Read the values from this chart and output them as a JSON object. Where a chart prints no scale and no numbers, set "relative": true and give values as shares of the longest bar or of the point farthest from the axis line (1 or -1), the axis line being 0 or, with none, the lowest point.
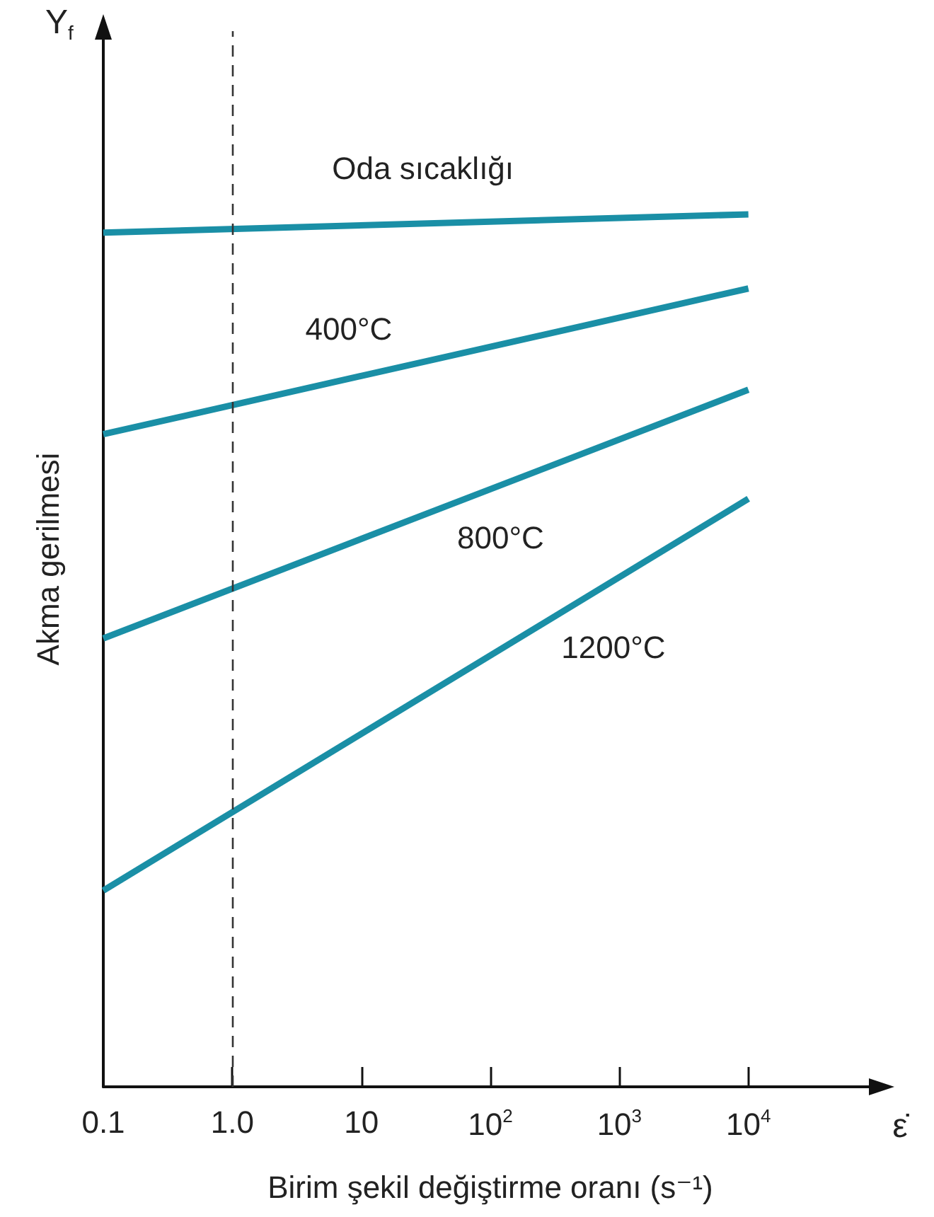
{
  "chart_data": {
    "type": "line",
    "relative": true,
    "xlabel": "Birim şekil değiştirme oranı (s⁻¹)",
    "ylabel": "Akma gerilmesi",
    "annotations": [
      "Y$_{f}$",
      "ε̇"
    ],
    "log": "x",
    "xlim": [
      0.1,
      100000
    ],
    "xticks": [
      {
        "value": 0.1,
        "label": "0.1"
      },
      {
        "value": 1,
        "label": "1.0"
      },
      {
        "value": 10,
        "label": "10"
      },
      {
        "value": 100,
        "label": "10$^{2}$"
      },
      {
        "value": 1000,
        "label": "10$^{3}$"
      },
      {
        "value": 10000,
        "label": "10$^{4}$"
      }
    ],
    "x": [
      0.1,
      10000
    ],
    "series": [
      {
        "name": "Oda sıcaklığı",
        "color": "#1a8fa6",
        "values": [
          0.979,
          1.0
        ]
      },
      {
        "name": "400°C",
        "color": "#1a8fa6",
        "values": [
          0.748,
          0.915
        ]
      },
      {
        "name": "800°C",
        "color": "#1a8fa6",
        "values": [
          0.514,
          0.799
        ]
      },
      {
        "name": "1200°C",
        "color": "#1a8fa6",
        "values": [
          0.225,
          0.674
        ]
      }
    ],
    "ref_lines": [
      {
        "axis": "x",
        "value": 1,
        "color": "#333333",
        "line_style": "dashed"
      }
    ],
    "marker": "none",
    "line_style": "solid",
    "grid": false,
    "legend": false
  }
}
